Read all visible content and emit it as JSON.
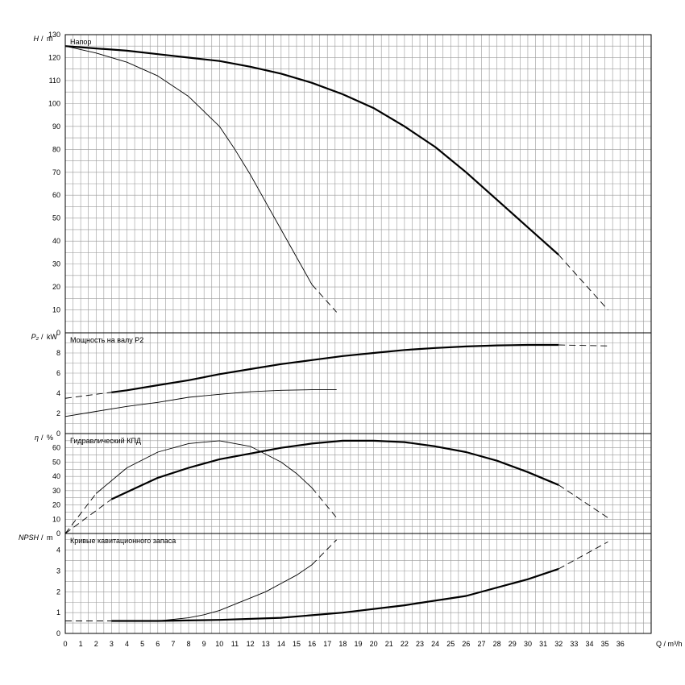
{
  "chart_data": [
    {
      "type": "line",
      "panel": "head",
      "title": "Напор",
      "ylabel_sym": "H",
      "ylabel_unit": "m",
      "ylim": [
        0,
        130
      ],
      "yticks": [
        0,
        10,
        20,
        30,
        40,
        50,
        60,
        70,
        80,
        90,
        100,
        110,
        120,
        130
      ],
      "grid": true,
      "series": [
        {
          "role": "max_speed",
          "x": [
            0,
            2,
            4,
            6,
            8,
            10,
            12,
            14,
            16,
            18,
            20,
            22,
            24,
            26,
            28,
            30,
            32
          ],
          "y": [
            125,
            124,
            123,
            121.5,
            120,
            118.5,
            116,
            113,
            109,
            104,
            98,
            90,
            81,
            70,
            58,
            46,
            34
          ],
          "dash_x": [
            32,
            35.2
          ],
          "dash_y": [
            34,
            10
          ]
        },
        {
          "role": "min_speed",
          "x": [
            0,
            2,
            4,
            6,
            8,
            10,
            11,
            12,
            13,
            14,
            15,
            16
          ],
          "y": [
            125,
            122,
            118,
            112,
            103,
            90,
            80,
            69,
            57,
            45,
            33,
            21
          ],
          "dash_x": [
            16,
            17.6
          ],
          "dash_y": [
            21,
            9
          ]
        }
      ]
    },
    {
      "type": "line",
      "panel": "power",
      "title": "Мощность на валу P2",
      "ylabel_sym": "P₂",
      "ylabel_unit": "kW",
      "ylim": [
        0,
        10
      ],
      "yticks": [
        0,
        2,
        4,
        6,
        8
      ],
      "grid": true,
      "series": [
        {
          "role": "max_speed",
          "x": [
            3,
            4,
            6,
            8,
            10,
            12,
            14,
            16,
            18,
            20,
            22,
            24,
            26,
            28,
            30,
            32
          ],
          "y": [
            4.1,
            4.3,
            4.8,
            5.3,
            5.9,
            6.4,
            6.9,
            7.3,
            7.7,
            8.0,
            8.3,
            8.5,
            8.65,
            8.75,
            8.8,
            8.8
          ],
          "dash_x": [
            0,
            3,
            32,
            35.2
          ],
          "dash_y": [
            3.5,
            4.1,
            8.8,
            8.7
          ],
          "dash_segments": [
            [
              0,
              1
            ],
            [
              2,
              3
            ]
          ]
        },
        {
          "role": "min_speed",
          "x": [
            0,
            2,
            4,
            6,
            8,
            10,
            12,
            14,
            16,
            17.6
          ],
          "y": [
            1.7,
            2.2,
            2.7,
            3.1,
            3.6,
            3.9,
            4.15,
            4.3,
            4.35,
            4.35
          ],
          "dash_x": [],
          "dash_y": []
        }
      ]
    },
    {
      "type": "line",
      "panel": "efficiency",
      "title": "Гидравлический КПД",
      "ylabel_sym": "η",
      "ylabel_unit": "%",
      "ylim": [
        0,
        70
      ],
      "yticks": [
        0,
        10,
        20,
        30,
        40,
        50,
        60
      ],
      "grid": true,
      "series": [
        {
          "role": "max_speed",
          "x": [
            3,
            4,
            6,
            8,
            10,
            12,
            14,
            16,
            18,
            20,
            22,
            24,
            26,
            28,
            30,
            32
          ],
          "y": [
            24,
            29,
            39,
            46,
            52,
            56,
            60,
            63,
            65,
            65,
            64,
            61,
            57,
            51,
            43,
            34
          ],
          "dash_x": [
            0,
            3,
            32,
            35.2
          ],
          "dash_y": [
            0,
            24,
            34,
            11
          ],
          "dash_segments": [
            [
              0,
              1
            ],
            [
              2,
              3
            ]
          ]
        },
        {
          "role": "min_speed",
          "x": [
            2,
            4,
            6,
            8,
            10,
            12,
            14,
            15,
            16
          ],
          "y": [
            28,
            46,
            57,
            63,
            65,
            61,
            50,
            42,
            32
          ],
          "dash_x": [
            0,
            2,
            16,
            17.6
          ],
          "dash_y": [
            0,
            28,
            32,
            11
          ],
          "dash_segments": [
            [
              0,
              1
            ],
            [
              2,
              3
            ]
          ]
        }
      ]
    },
    {
      "type": "line",
      "panel": "npsh",
      "title": "Кривые кавитационного запаса",
      "ylabel_sym": "NPSH",
      "ylabel_unit": "m",
      "ylim": [
        0,
        4.8
      ],
      "yticks": [
        0,
        1,
        2,
        3,
        4
      ],
      "grid": true,
      "series": [
        {
          "role": "max_speed",
          "x": [
            3,
            6,
            10,
            14,
            18,
            22,
            26,
            30,
            32
          ],
          "y": [
            0.6,
            0.6,
            0.65,
            0.75,
            1.0,
            1.35,
            1.8,
            2.6,
            3.1
          ],
          "dash_x": [
            0,
            3,
            32,
            35.2
          ],
          "dash_y": [
            0.6,
            0.6,
            3.1,
            4.4
          ],
          "dash_segments": [
            [
              0,
              1
            ],
            [
              2,
              3
            ]
          ]
        },
        {
          "role": "min_speed",
          "x": [
            6,
            8,
            9,
            10,
            11,
            12,
            13,
            14,
            15,
            16
          ],
          "y": [
            0.6,
            0.75,
            0.9,
            1.1,
            1.4,
            1.7,
            2.0,
            2.4,
            2.8,
            3.3
          ],
          "dash_x": [
            16,
            17.6
          ],
          "dash_y": [
            3.3,
            4.5
          ],
          "dash_segments": [
            [
              0,
              1
            ]
          ]
        }
      ]
    }
  ],
  "x_axis": {
    "xlim": [
      0,
      38
    ],
    "ticks": [
      "0",
      "1",
      "2",
      "3",
      "4",
      "5",
      "6",
      "7",
      "8",
      "9",
      "10",
      "11",
      "12",
      "13",
      "14",
      "15",
      "16",
      "17",
      "18",
      "19",
      "20",
      "21",
      "22",
      "23",
      "24",
      "25",
      "26",
      "27",
      "28",
      "29",
      "30",
      "31",
      "32",
      "33",
      "34",
      "35",
      "36"
    ],
    "label": "Q / m³/h"
  }
}
